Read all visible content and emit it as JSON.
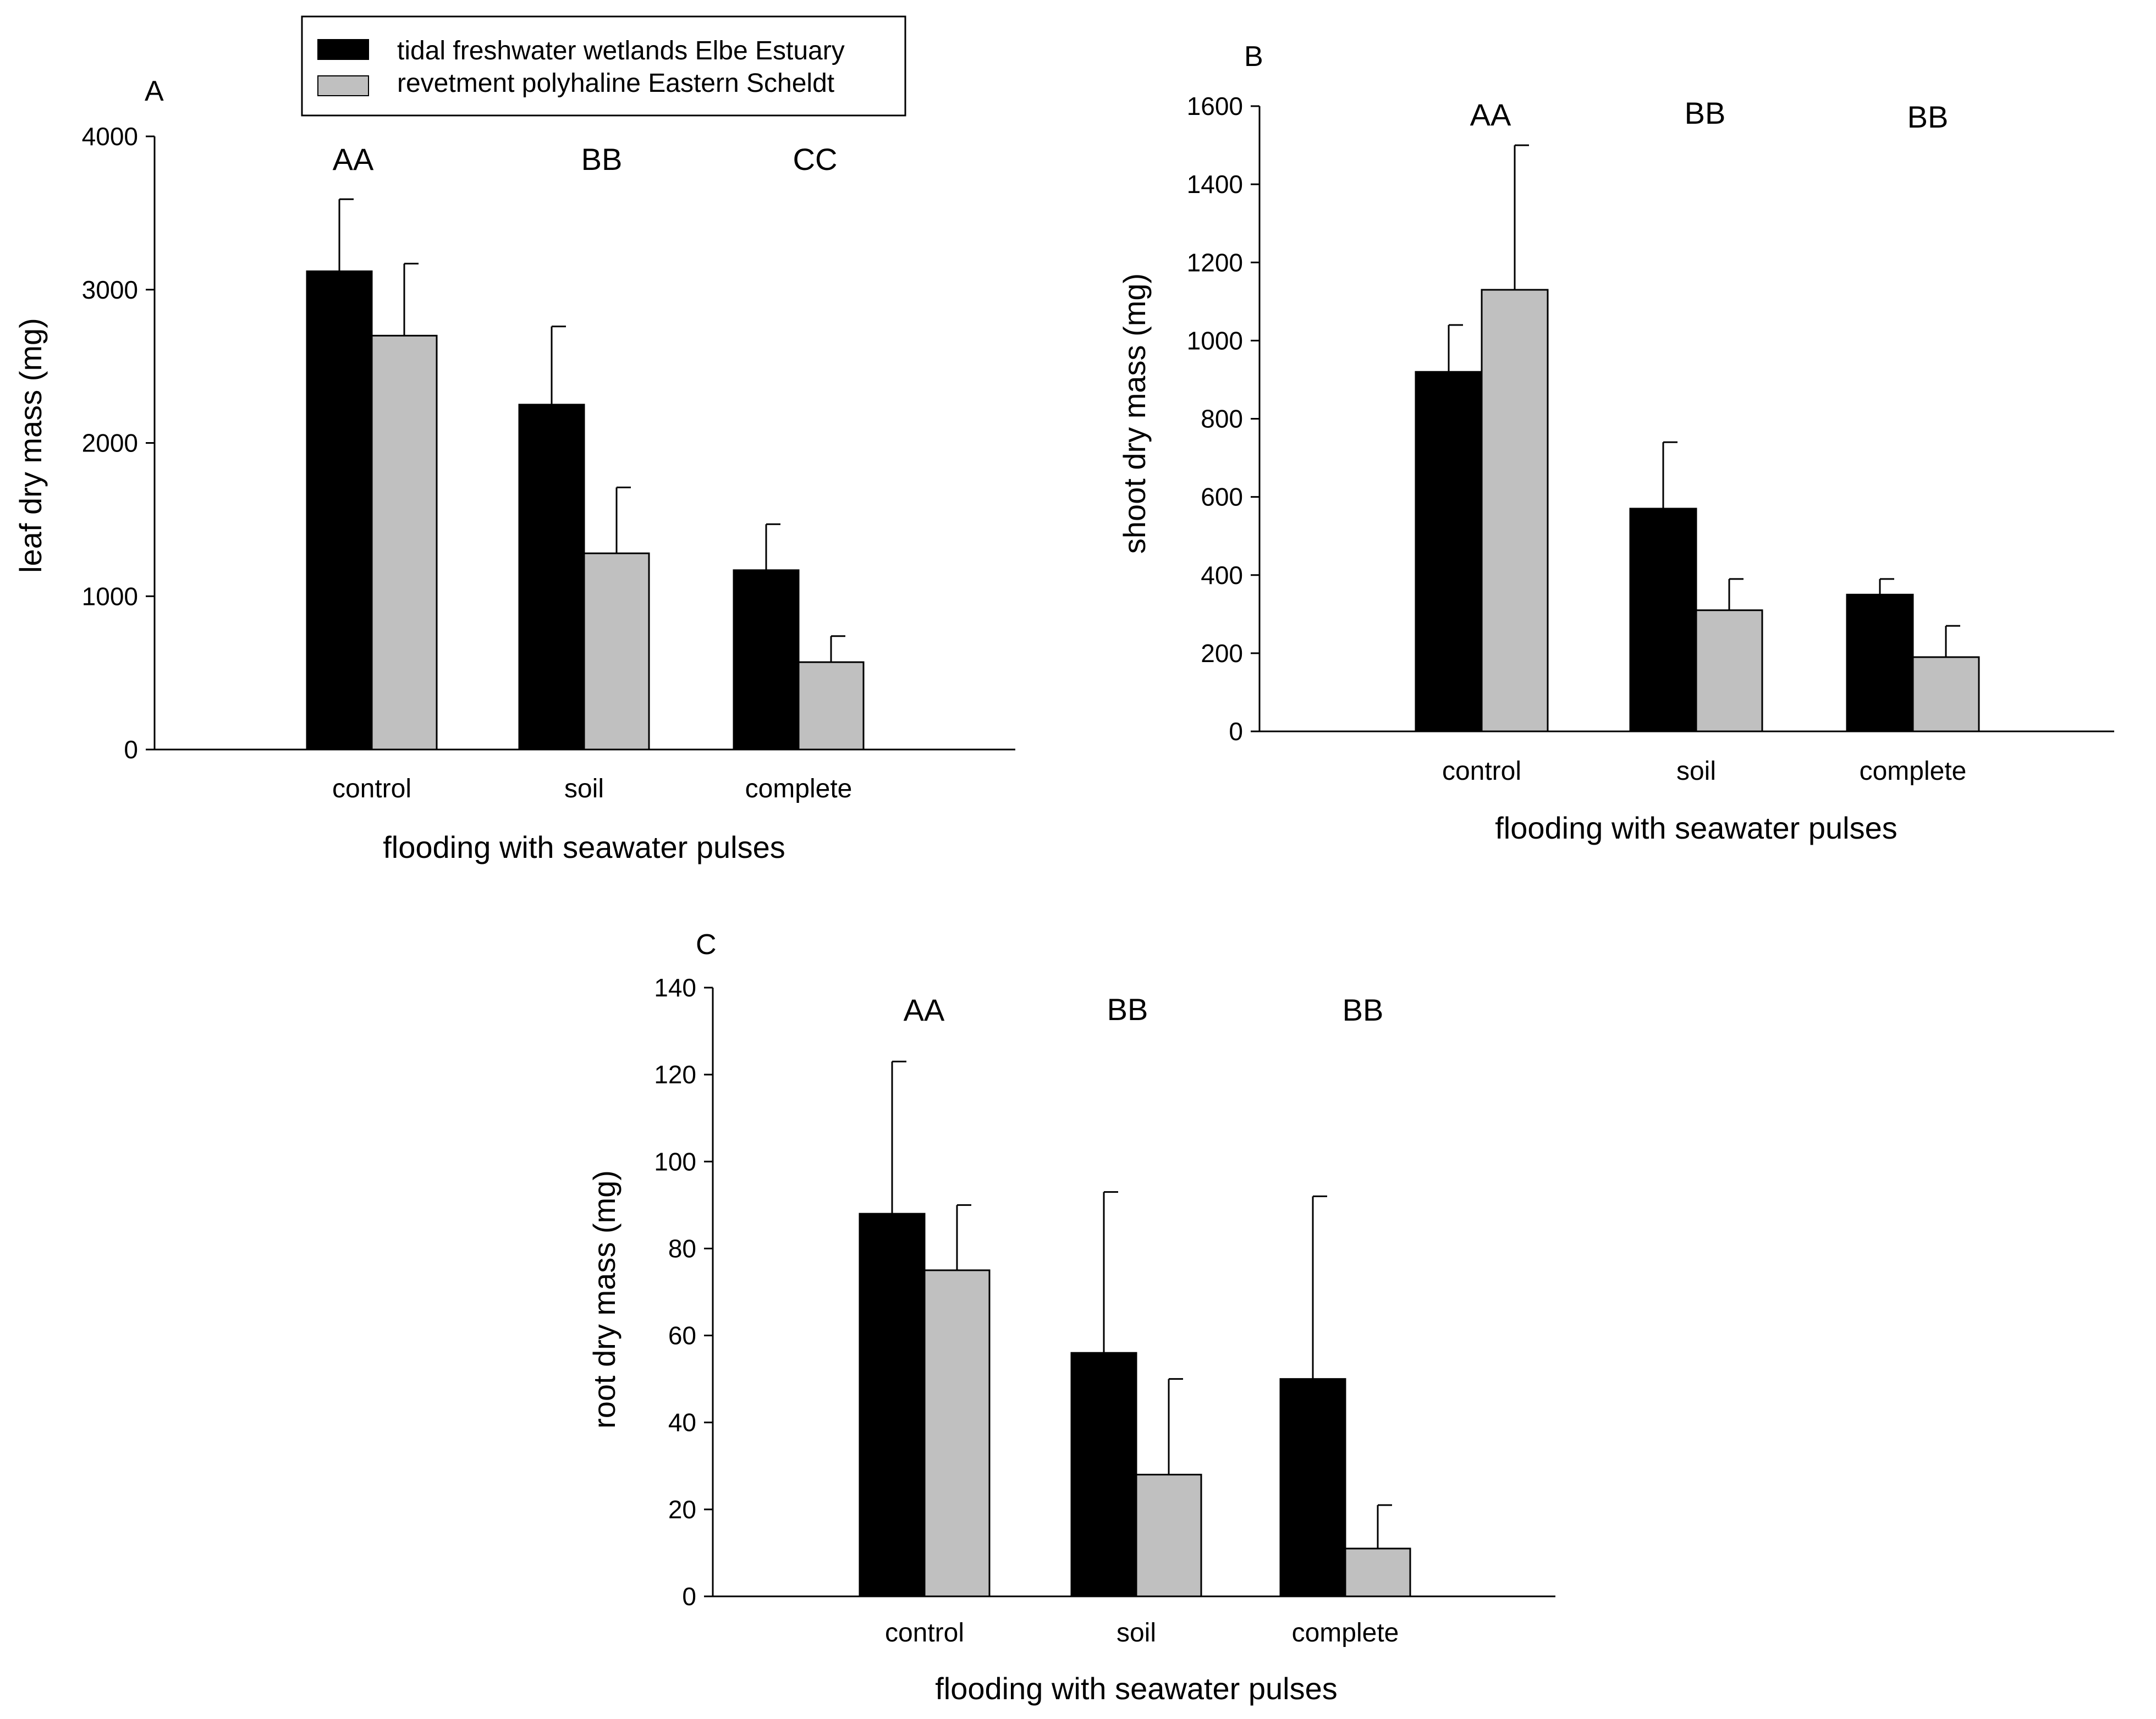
{
  "legend": {
    "items": [
      {
        "label": "tidal freshwater wetlands Elbe Estuary",
        "color": "#000000"
      },
      {
        "label": "revetment polyhaline Eastern Scheldt",
        "color": "#c0c0c0"
      }
    ]
  },
  "chart_data": [
    {
      "type": "bar",
      "panel": "A",
      "categories": [
        "control",
        "soil",
        "complete"
      ],
      "series": [
        {
          "name": "tidal freshwater wetlands Elbe Estuary",
          "values": [
            3120,
            2250,
            1170
          ],
          "errors": [
            470,
            510,
            300
          ]
        },
        {
          "name": "revetment polyhaline Eastern Scheldt",
          "values": [
            2700,
            1280,
            570
          ],
          "errors": [
            470,
            430,
            170
          ]
        }
      ],
      "significance": [
        "AA",
        "BB",
        "CC"
      ],
      "xlabel": "flooding with seawater pulses",
      "ylabel": "leaf dry mass (mg)",
      "ylim": [
        0,
        4000
      ],
      "yticks": [
        0,
        1000,
        2000,
        3000,
        4000
      ]
    },
    {
      "type": "bar",
      "panel": "B",
      "categories": [
        "control",
        "soil",
        "complete"
      ],
      "series": [
        {
          "name": "tidal freshwater wetlands Elbe Estuary",
          "values": [
            920,
            570,
            350
          ],
          "errors": [
            120,
            170,
            40
          ]
        },
        {
          "name": "revetment polyhaline Eastern Scheldt",
          "values": [
            1130,
            310,
            190
          ],
          "errors": [
            370,
            80,
            80
          ]
        }
      ],
      "significance": [
        "AA",
        "BB",
        "BB"
      ],
      "xlabel": "flooding with seawater pulses",
      "ylabel": "shoot dry mass (mg)",
      "ylim": [
        0,
        1600
      ],
      "yticks": [
        0,
        200,
        400,
        600,
        800,
        1000,
        1200,
        1400,
        1600
      ]
    },
    {
      "type": "bar",
      "panel": "C",
      "categories": [
        "control",
        "soil",
        "complete"
      ],
      "series": [
        {
          "name": "tidal freshwater wetlands Elbe Estuary",
          "values": [
            88,
            56,
            50
          ],
          "errors": [
            35,
            37,
            42
          ]
        },
        {
          "name": "revetment polyhaline Eastern Scheldt",
          "values": [
            75,
            28,
            11
          ],
          "errors": [
            15,
            22,
            10
          ]
        }
      ],
      "significance": [
        "AA",
        "BB",
        "BB"
      ],
      "xlabel": "flooding with seawater pulses",
      "ylabel": "root dry mass (mg)",
      "ylim": [
        0,
        140
      ],
      "yticks": [
        0,
        20,
        40,
        60,
        80,
        100,
        120,
        140
      ]
    }
  ]
}
